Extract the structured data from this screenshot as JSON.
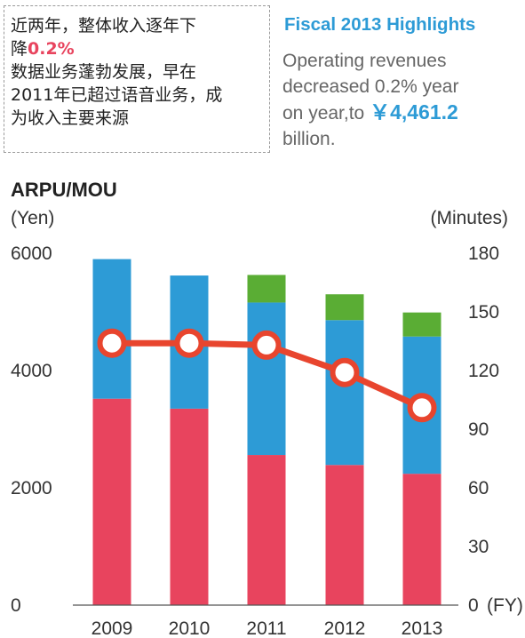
{
  "note": {
    "line1": "近两年，整体收入逐年下",
    "line2_prefix": "降",
    "line2_highlight": "0.2%",
    "line3": "数据业务蓬勃发展，早在",
    "line4": "2011年已超过语音业务，成",
    "line5": "为收入主要来源"
  },
  "highlights": {
    "title": "Fiscal 2013 Highlights",
    "line1": "Operating revenues",
    "line2": "decreased 0.2% year",
    "line3_prefix": "on year,to ",
    "amount": "￥4,461.2",
    "line4": "billion."
  },
  "chart_data": {
    "type": "bar",
    "title": "ARPU/MOU",
    "ylabel_left": "(Yen)",
    "ylabel_right": "(Minutes)",
    "xlabel": "(FY)",
    "categories": [
      "2009",
      "2010",
      "2011",
      "2012",
      "2013"
    ],
    "ylim_left": [
      0,
      6000
    ],
    "ylim_right": [
      0,
      180
    ],
    "yticks_left": [
      0,
      2000,
      4000,
      6000
    ],
    "yticks_right": [
      0,
      30,
      60,
      90,
      120,
      150,
      180
    ],
    "stacked": true,
    "series": [
      {
        "color": "#e8445e",
        "axis": "left",
        "type": "bar",
        "values": [
          3520,
          3350,
          2560,
          2390,
          2240
        ]
      },
      {
        "color": "#2d9bd6",
        "axis": "left",
        "type": "bar",
        "values": [
          2380,
          2270,
          2600,
          2470,
          2340
        ]
      },
      {
        "color": "#5aad34",
        "axis": "left",
        "type": "bar",
        "values": [
          0,
          0,
          470,
          440,
          410
        ]
      },
      {
        "color": "#e8452e",
        "axis": "right",
        "type": "line",
        "marker_fill": "#ffffff",
        "values": [
          134,
          134,
          133,
          119,
          101
        ]
      }
    ],
    "grid": false,
    "legend": "none"
  }
}
